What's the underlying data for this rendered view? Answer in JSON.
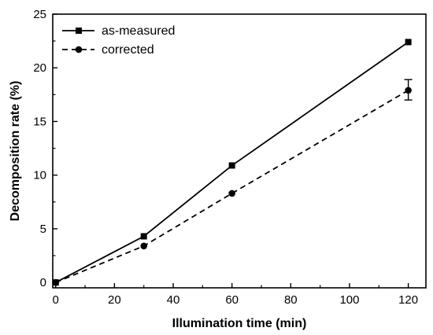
{
  "chart_data": {
    "type": "line",
    "xlabel": "Illumination time (min)",
    "ylabel": "Decomposition rate (%)",
    "xlim": [
      -1,
      126
    ],
    "ylim": [
      -0.5,
      25
    ],
    "xticks": [
      "0",
      "20",
      "40",
      "60",
      "80",
      "100",
      "120"
    ],
    "yticks": [
      "0",
      "5",
      "10",
      "15",
      "20",
      "25"
    ],
    "grid": false,
    "legend_position": "top-left",
    "series": [
      {
        "name": "as-measured",
        "marker": "square",
        "line_style": "solid",
        "color": "#000000",
        "x": [
          0,
          30,
          60,
          120
        ],
        "y": [
          0,
          4.3,
          10.9,
          22.4
        ]
      },
      {
        "name": "corrected",
        "marker": "circle",
        "line_style": "dashed",
        "color": "#000000",
        "x": [
          0,
          30,
          60,
          120
        ],
        "y": [
          0,
          3.4,
          8.3,
          17.9
        ],
        "error_bar": {
          "x": 120,
          "low": 17.0,
          "high": 18.9
        }
      }
    ]
  }
}
